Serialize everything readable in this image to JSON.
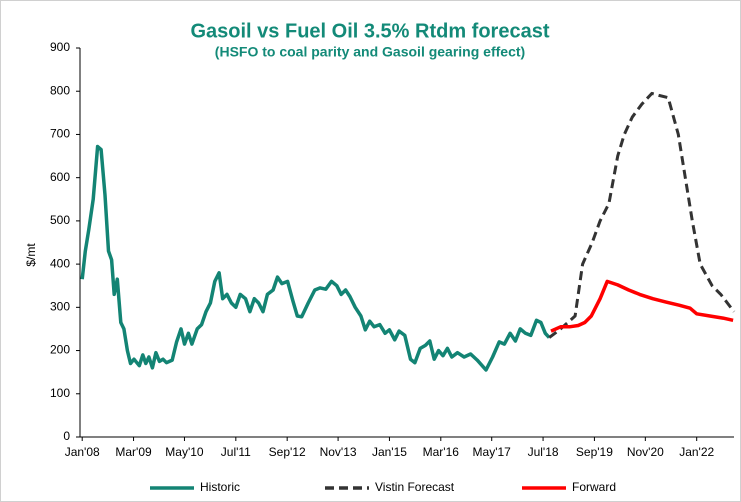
{
  "chart_data": {
    "type": "line",
    "title": "Gasoil vs Fuel Oil 3.5% Rtdm forecast",
    "subtitle": "(HSFO to coal parity and Gasoil gearing effect)",
    "y_label": "$/mt",
    "xlim": [
      2007.95,
      2022.85
    ],
    "xticks": [
      {
        "value": 2008,
        "label": "Jan'08"
      },
      {
        "value": 2009.17,
        "label": "Mar'09"
      },
      {
        "value": 2010.33,
        "label": "May'10"
      },
      {
        "value": 2011.5,
        "label": "Jul'11"
      },
      {
        "value": 2012.67,
        "label": "Sep'12"
      },
      {
        "value": 2013.83,
        "label": "Nov'13"
      },
      {
        "value": 2015,
        "label": "Jan'15"
      },
      {
        "value": 2016.17,
        "label": "Mar'16"
      },
      {
        "value": 2017.33,
        "label": "May'17"
      },
      {
        "value": 2018.5,
        "label": "Jul'18"
      },
      {
        "value": 2019.67,
        "label": "Sep'19"
      },
      {
        "value": 2020.83,
        "label": "Nov'20"
      },
      {
        "value": 2022,
        "label": "Jan'22"
      }
    ],
    "ylim": [
      0,
      900
    ],
    "yticks": [
      0,
      100,
      200,
      300,
      400,
      500,
      600,
      700,
      800,
      900
    ],
    "grid": false,
    "legend": "bottom",
    "series": [
      {
        "name": "Historic",
        "color": "#138474",
        "dash": false,
        "x": [
          2008.0,
          2008.07,
          2008.15,
          2008.25,
          2008.35,
          2008.43,
          2008.52,
          2008.6,
          2008.67,
          2008.73,
          2008.8,
          2008.88,
          2008.95,
          2009.03,
          2009.1,
          2009.18,
          2009.3,
          2009.38,
          2009.45,
          2009.52,
          2009.6,
          2009.68,
          2009.76,
          2009.84,
          2009.92,
          2010.05,
          2010.15,
          2010.25,
          2010.33,
          2010.42,
          2010.5,
          2010.62,
          2010.72,
          2010.82,
          2010.92,
          2011.02,
          2011.12,
          2011.2,
          2011.3,
          2011.4,
          2011.5,
          2011.6,
          2011.72,
          2011.82,
          2011.92,
          2012.02,
          2012.12,
          2012.22,
          2012.35,
          2012.45,
          2012.55,
          2012.68,
          2012.8,
          2012.9,
          2013.0,
          2013.15,
          2013.3,
          2013.42,
          2013.55,
          2013.68,
          2013.8,
          2013.9,
          2014.0,
          2014.1,
          2014.22,
          2014.35,
          2014.45,
          2014.55,
          2014.65,
          2014.78,
          2014.9,
          2015.0,
          2015.12,
          2015.22,
          2015.35,
          2015.48,
          2015.58,
          2015.7,
          2015.82,
          2015.92,
          2016.02,
          2016.12,
          2016.22,
          2016.32,
          2016.42,
          2016.55,
          2016.7,
          2016.85,
          2017.0,
          2017.2,
          2017.35,
          2017.5,
          2017.62,
          2017.75,
          2017.87,
          2017.98,
          2018.1,
          2018.22,
          2018.35,
          2018.45,
          2018.55,
          2018.64
        ],
        "values": [
          365,
          430,
          480,
          550,
          672,
          665,
          560,
          430,
          410,
          330,
          365,
          265,
          250,
          200,
          170,
          180,
          165,
          190,
          170,
          185,
          160,
          195,
          175,
          180,
          172,
          178,
          220,
          250,
          215,
          240,
          215,
          250,
          260,
          290,
          310,
          360,
          380,
          320,
          330,
          310,
          300,
          330,
          320,
          290,
          320,
          310,
          290,
          330,
          340,
          370,
          355,
          360,
          315,
          280,
          278,
          310,
          340,
          345,
          342,
          360,
          350,
          330,
          340,
          325,
          300,
          280,
          248,
          268,
          255,
          260,
          240,
          248,
          225,
          245,
          235,
          180,
          172,
          205,
          212,
          222,
          180,
          200,
          188,
          205,
          185,
          195,
          185,
          192,
          178,
          155,
          185,
          220,
          215,
          240,
          222,
          250,
          240,
          235,
          270,
          265,
          240,
          230
        ]
      },
      {
        "name": "Vistin Forecast",
        "color": "#333333",
        "dash": true,
        "x": [
          2018.64,
          2018.9,
          2019.23,
          2019.4,
          2019.62,
          2019.8,
          2020.0,
          2020.2,
          2020.35,
          2020.53,
          2020.75,
          2020.98,
          2021.15,
          2021.35,
          2021.58,
          2021.74,
          2021.9,
          2022.08,
          2022.35,
          2022.55,
          2022.85
        ],
        "values": [
          230,
          250,
          280,
          400,
          450,
          500,
          540,
          650,
          700,
          740,
          770,
          795,
          790,
          785,
          700,
          600,
          500,
          400,
          350,
          330,
          290
        ]
      },
      {
        "name": "Forward",
        "color": "#ff0000",
        "dash": false,
        "x": [
          2018.68,
          2018.9,
          2019.1,
          2019.3,
          2019.45,
          2019.6,
          2019.8,
          2019.96,
          2020.2,
          2020.45,
          2020.7,
          2021.0,
          2021.3,
          2021.6,
          2021.85,
          2022.0,
          2022.3,
          2022.6,
          2022.83
        ],
        "values": [
          245,
          255,
          255,
          258,
          265,
          280,
          320,
          360,
          352,
          340,
          330,
          320,
          312,
          305,
          298,
          285,
          280,
          275,
          270
        ]
      }
    ]
  }
}
